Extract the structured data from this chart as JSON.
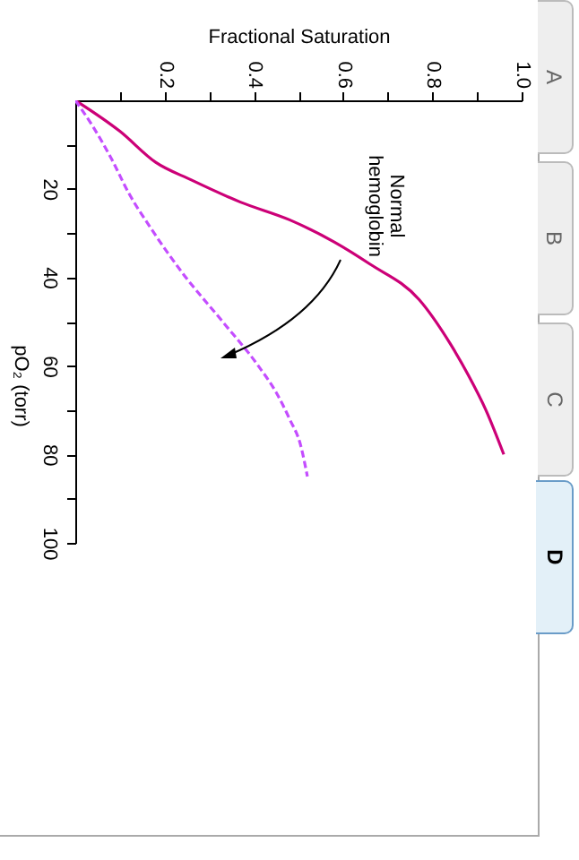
{
  "chart_data": {
    "type": "line",
    "xlabel": "Fractional Saturation",
    "ylabel": "pO₂ (torr)",
    "xlim": [
      0,
      1.0
    ],
    "ylim": [
      100,
      0
    ],
    "xticks": [
      {
        "value": 0.1,
        "label": null
      },
      0.2,
      {
        "value": 0.3,
        "label": null
      },
      0.4,
      {
        "value": 0.5,
        "label": null
      },
      0.6,
      {
        "value": 0.7,
        "label": null
      },
      0.8,
      {
        "value": 0.9,
        "label": null
      },
      {
        "value": 1.0,
        "label": "1.0"
      }
    ],
    "yticks": [
      {
        "value": 10,
        "label": null
      },
      20,
      {
        "value": 30,
        "label": null
      },
      40,
      {
        "value": 50,
        "label": null
      },
      60,
      {
        "value": 70,
        "label": null
      },
      80,
      {
        "value": 90,
        "label": null
      },
      100
    ],
    "series": [
      {
        "color": "#cc0077",
        "line_style": "solid",
        "x": [
          0,
          0.1,
          0.18,
          0.26,
          0.37,
          0.48,
          0.58,
          0.66,
          0.77,
          0.84,
          0.88,
          0.92,
          0.96
        ],
        "values": [
          0,
          7,
          14,
          18,
          23,
          27,
          32,
          37,
          45,
          55,
          62,
          70,
          80
        ]
      },
      {
        "color": "#c44dff",
        "line_style": "dashed",
        "x": [
          0,
          0.04,
          0.08,
          0.12,
          0.17,
          0.24,
          0.33,
          0.41,
          0.45,
          0.48,
          0.505,
          0.52
        ],
        "values": [
          0,
          6,
          13,
          21,
          29,
          39,
          50,
          60,
          66,
          72,
          78,
          85
        ]
      }
    ],
    "annotations": [
      "Normal\nhemoglobin",
      "A",
      "B",
      "C",
      "D"
    ],
    "legend": false,
    "grid": false
  }
}
